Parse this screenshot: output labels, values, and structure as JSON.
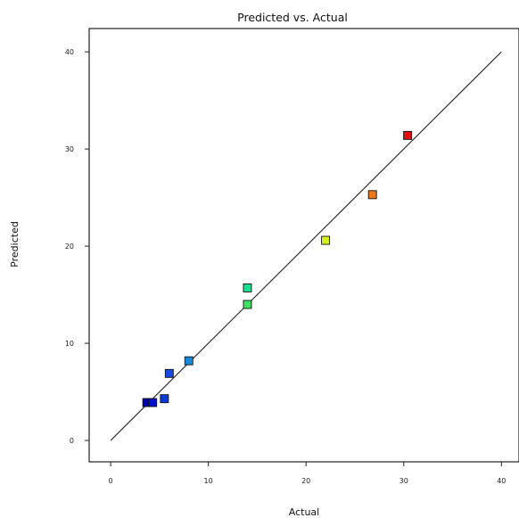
{
  "chart_data": {
    "type": "scatter",
    "title": "Predicted vs. Actual",
    "xlabel": "Actual",
    "ylabel": "Predicted",
    "xlim": [
      -2.2,
      41.8
    ],
    "ylim": [
      -2.2,
      42.4
    ],
    "xticks": [
      0,
      10,
      20,
      30,
      40
    ],
    "yticks": [
      0,
      10,
      20,
      30,
      40
    ],
    "grid": false,
    "reference_line": {
      "from": [
        0,
        0
      ],
      "to": [
        40,
        40
      ],
      "color": "#333333"
    },
    "points": [
      {
        "x": 3.7,
        "y": 3.9,
        "color": "#0000c0"
      },
      {
        "x": 4.0,
        "y": 3.9,
        "color": "#0000b0"
      },
      {
        "x": 4.3,
        "y": 3.9,
        "color": "#0010c8"
      },
      {
        "x": 5.5,
        "y": 4.3,
        "color": "#0a3ad8"
      },
      {
        "x": 6.0,
        "y": 6.9,
        "color": "#1848e0"
      },
      {
        "x": 8.0,
        "y": 8.2,
        "color": "#1a88d8"
      },
      {
        "x": 14.0,
        "y": 15.7,
        "color": "#18e090"
      },
      {
        "x": 14.0,
        "y": 14.0,
        "color": "#40e060"
      },
      {
        "x": 22.0,
        "y": 20.6,
        "color": "#d8f020"
      },
      {
        "x": 26.8,
        "y": 25.3,
        "color": "#f07818"
      },
      {
        "x": 30.4,
        "y": 31.4,
        "color": "#e01010"
      }
    ]
  }
}
